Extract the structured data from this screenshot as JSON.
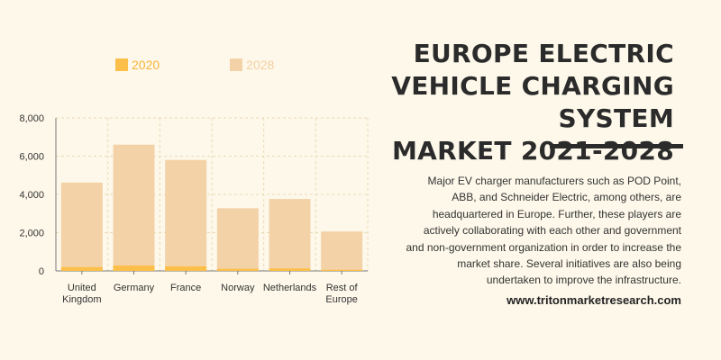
{
  "title_lines": [
    "EUROPE ELECTRIC",
    "VEHICLE CHARGING SYSTEM",
    "MARKET 2021-2028"
  ],
  "description": "Major EV charger manufacturers such as POD Point, ABB, and Schneider Electric, among others, are headquartered in Europe. Further, these players are actively collaborating with each other and government and non-government organization in order to increase the market share. Several initiatives are also being undertaken to improve the infrastructure.",
  "website": "www.tritonmarketresearch.com",
  "colors": {
    "series_2020": "#fcbf49",
    "series_2028": "#f4d2a8",
    "series_2028_text": "#f4cfa2",
    "series_2020_text": "#f8b437"
  },
  "chart_data": {
    "type": "bar",
    "categories": [
      [
        "United",
        "Kingdom"
      ],
      [
        "Germany"
      ],
      [
        "France"
      ],
      [
        "Norway"
      ],
      [
        "Netherlands"
      ],
      [
        "Rest of",
        "Europe"
      ]
    ],
    "series": [
      {
        "name": "2020",
        "values": [
          200,
          280,
          240,
          110,
          130,
          60
        ]
      },
      {
        "name": "2028",
        "values": [
          4620,
          6600,
          5800,
          3280,
          3760,
          2060
        ]
      }
    ],
    "yticks": [
      "0",
      "2,000",
      "4,000",
      "6,000",
      "8,000"
    ],
    "ylim": [
      0,
      8000
    ],
    "grid": true,
    "legend_position": "top"
  }
}
